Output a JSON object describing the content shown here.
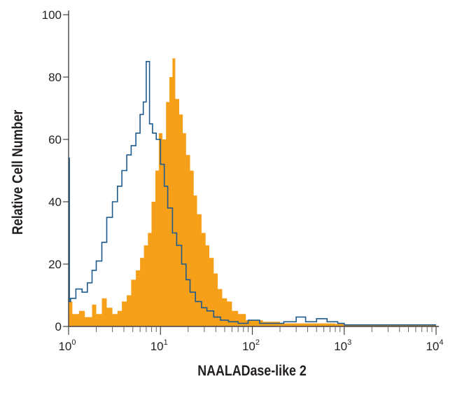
{
  "chart_data": {
    "type": "area",
    "title": "",
    "xlabel": "NAALADase-like 2",
    "ylabel": "Relative Cell Number",
    "xscale": "log",
    "xlim": [
      1,
      10000
    ],
    "ylim": [
      0,
      100
    ],
    "grid": false,
    "x_tick_labels": [
      {
        "base": "10",
        "exp": "0"
      },
      {
        "base": "10",
        "exp": "1"
      },
      {
        "base": "10",
        "exp": "2"
      },
      {
        "base": "10",
        "exp": "3"
      },
      {
        "base": "10",
        "exp": "4"
      }
    ],
    "y_ticks": [
      0,
      20,
      40,
      60,
      80,
      100
    ],
    "y_tick_labels": [
      "0",
      "20",
      "40",
      "60",
      "80",
      "100"
    ],
    "series": [
      {
        "style": "filled",
        "color": "#f6a01a",
        "x": [
          1,
          1.1,
          1.3,
          1.5,
          1.8,
          2.0,
          2.3,
          2.6,
          3.0,
          3.4,
          3.8,
          4.3,
          4.8,
          5.4,
          6.0,
          6.6,
          7.3,
          8.0,
          8.8,
          9.6,
          10.5,
          11.5,
          12.5,
          13.5,
          14.5,
          16,
          17.5,
          19,
          21,
          23,
          25,
          28,
          31,
          34,
          38,
          42,
          47,
          53,
          60,
          70,
          85,
          100,
          130,
          200,
          300,
          500,
          800,
          1000,
          3000,
          10000
        ],
        "y": [
          8,
          4,
          5,
          3,
          7,
          4,
          9,
          6,
          4,
          5,
          8,
          10,
          15,
          18,
          22,
          26,
          30,
          40,
          50,
          62,
          60,
          72,
          80,
          86,
          73,
          68,
          62,
          55,
          50,
          42,
          36,
          30,
          26,
          22,
          17,
          12,
          9,
          8,
          5,
          4,
          2,
          2,
          1.5,
          1,
          1,
          1,
          0.8,
          0.5,
          0.5,
          0.5
        ]
      },
      {
        "style": "line",
        "color": "#1f5a8c",
        "x": [
          1,
          1.02,
          1.05,
          1.2,
          1.4,
          1.6,
          1.8,
          2.0,
          2.3,
          2.6,
          3.0,
          3.4,
          3.8,
          4.3,
          4.8,
          5.4,
          6.0,
          6.5,
          7.0,
          7.6,
          8.2,
          9.0,
          10,
          11,
          12,
          13.5,
          15,
          17,
          19,
          21,
          24,
          28,
          32,
          38,
          45,
          55,
          70,
          90,
          120,
          160,
          220,
          300,
          380,
          500,
          650,
          850,
          1000,
          3000,
          10000
        ],
        "y": [
          54,
          8,
          9,
          12,
          11,
          14,
          18,
          21,
          27,
          35,
          40,
          45,
          50,
          55,
          58,
          62,
          68,
          72,
          85,
          65,
          62,
          60,
          52,
          45,
          38,
          30,
          26,
          20,
          15,
          11,
          8,
          6,
          5,
          3,
          2,
          1.5,
          1,
          2,
          1,
          1,
          1.5,
          3,
          1.5,
          2.5,
          1.5,
          1,
          0.5,
          0.5,
          0.5
        ]
      }
    ]
  }
}
